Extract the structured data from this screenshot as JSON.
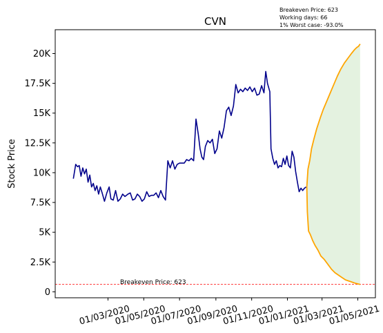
{
  "chart_data": {
    "type": "line",
    "title": "CVN",
    "ylabel": "Stock Price",
    "xlabel": "",
    "ylim": [
      -500,
      22000
    ],
    "xlim": [
      "2019-12-02",
      "2021-05-31"
    ],
    "grid": false,
    "y_ticks": [
      {
        "value": 0,
        "label": "0"
      },
      {
        "value": 2500,
        "label": "2.5K"
      },
      {
        "value": 5000,
        "label": "5K"
      },
      {
        "value": 7500,
        "label": "7.5K"
      },
      {
        "value": 10000,
        "label": "10K"
      },
      {
        "value": 12500,
        "label": "12.5K"
      },
      {
        "value": 15000,
        "label": "15K"
      },
      {
        "value": 17500,
        "label": "17.5K"
      },
      {
        "value": 20000,
        "label": "20K"
      }
    ],
    "x_ticks": [
      {
        "value": "2020-03-01",
        "label": "01/03/2020"
      },
      {
        "value": "2020-05-01",
        "label": "01/05/2020"
      },
      {
        "value": "2020-07-01",
        "label": "01/07/2020"
      },
      {
        "value": "2020-09-01",
        "label": "01/09/2020"
      },
      {
        "value": "2020-11-01",
        "label": "01/11/2020"
      },
      {
        "value": "2021-01-01",
        "label": "01/01/2021"
      },
      {
        "value": "2021-03-01",
        "label": "01/03/2021"
      },
      {
        "value": "2021-05-01",
        "label": "01/05/2021"
      }
    ],
    "series": [
      {
        "color": "#00008b",
        "points": [
          [
            "2020-01-02",
            9500
          ],
          [
            "2020-01-06",
            10700
          ],
          [
            "2020-01-09",
            10500
          ],
          [
            "2020-01-12",
            10600
          ],
          [
            "2020-01-15",
            9700
          ],
          [
            "2020-01-18",
            10400
          ],
          [
            "2020-01-21",
            9900
          ],
          [
            "2020-01-24",
            10300
          ],
          [
            "2020-01-27",
            9200
          ],
          [
            "2020-01-30",
            9800
          ],
          [
            "2020-02-02",
            8800
          ],
          [
            "2020-02-05",
            9100
          ],
          [
            "2020-02-08",
            8500
          ],
          [
            "2020-02-11",
            8900
          ],
          [
            "2020-02-14",
            8200
          ],
          [
            "2020-02-17",
            8800
          ],
          [
            "2020-02-20",
            8300
          ],
          [
            "2020-02-24",
            7600
          ],
          [
            "2020-02-28",
            8300
          ],
          [
            "2020-03-03",
            8800
          ],
          [
            "2020-03-06",
            7800
          ],
          [
            "2020-03-10",
            7700
          ],
          [
            "2020-03-14",
            8500
          ],
          [
            "2020-03-18",
            7600
          ],
          [
            "2020-03-22",
            7800
          ],
          [
            "2020-03-26",
            8200
          ],
          [
            "2020-03-30",
            8000
          ],
          [
            "2020-04-04",
            8200
          ],
          [
            "2020-04-08",
            8300
          ],
          [
            "2020-04-12",
            7700
          ],
          [
            "2020-04-16",
            7800
          ],
          [
            "2020-04-20",
            8200
          ],
          [
            "2020-04-24",
            8000
          ],
          [
            "2020-04-28",
            7600
          ],
          [
            "2020-05-02",
            7800
          ],
          [
            "2020-05-06",
            8400
          ],
          [
            "2020-05-10",
            8000
          ],
          [
            "2020-05-14",
            8100
          ],
          [
            "2020-05-18",
            8100
          ],
          [
            "2020-05-22",
            8300
          ],
          [
            "2020-05-26",
            7900
          ],
          [
            "2020-05-30",
            8500
          ],
          [
            "2020-06-03",
            8000
          ],
          [
            "2020-06-07",
            7700
          ],
          [
            "2020-06-11",
            11000
          ],
          [
            "2020-06-15",
            10400
          ],
          [
            "2020-06-19",
            11000
          ],
          [
            "2020-06-23",
            10300
          ],
          [
            "2020-06-27",
            10700
          ],
          [
            "2020-07-01",
            10800
          ],
          [
            "2020-07-05",
            10800
          ],
          [
            "2020-07-09",
            10800
          ],
          [
            "2020-07-13",
            11100
          ],
          [
            "2020-07-17",
            11000
          ],
          [
            "2020-07-21",
            11200
          ],
          [
            "2020-07-25",
            11000
          ],
          [
            "2020-07-29",
            14500
          ],
          [
            "2020-08-02",
            13200
          ],
          [
            "2020-08-05",
            12000
          ],
          [
            "2020-08-08",
            11300
          ],
          [
            "2020-08-11",
            11100
          ],
          [
            "2020-08-14",
            12200
          ],
          [
            "2020-08-18",
            12700
          ],
          [
            "2020-08-22",
            12500
          ],
          [
            "2020-08-26",
            12800
          ],
          [
            "2020-08-30",
            11600
          ],
          [
            "2020-09-03",
            12000
          ],
          [
            "2020-09-07",
            13500
          ],
          [
            "2020-09-11",
            12900
          ],
          [
            "2020-09-15",
            13800
          ],
          [
            "2020-09-19",
            15200
          ],
          [
            "2020-09-23",
            15500
          ],
          [
            "2020-09-27",
            14800
          ],
          [
            "2020-10-01",
            15600
          ],
          [
            "2020-10-05",
            17400
          ],
          [
            "2020-10-09",
            16700
          ],
          [
            "2020-10-13",
            17000
          ],
          [
            "2020-10-17",
            16800
          ],
          [
            "2020-10-21",
            17100
          ],
          [
            "2020-10-25",
            16900
          ],
          [
            "2020-10-29",
            17200
          ],
          [
            "2020-11-02",
            16800
          ],
          [
            "2020-11-06",
            17100
          ],
          [
            "2020-11-10",
            16500
          ],
          [
            "2020-11-14",
            16600
          ],
          [
            "2020-11-18",
            17300
          ],
          [
            "2020-11-22",
            16700
          ],
          [
            "2020-11-25",
            18500
          ],
          [
            "2020-11-28",
            17500
          ],
          [
            "2020-12-02",
            16800
          ],
          [
            "2020-12-04",
            12000
          ],
          [
            "2020-12-07",
            11200
          ],
          [
            "2020-12-10",
            10700
          ],
          [
            "2020-12-13",
            11000
          ],
          [
            "2020-12-16",
            10400
          ],
          [
            "2020-12-19",
            10600
          ],
          [
            "2020-12-22",
            10500
          ],
          [
            "2020-12-25",
            11200
          ],
          [
            "2020-12-28",
            10700
          ],
          [
            "2020-12-31",
            11400
          ],
          [
            "2021-01-03",
            10600
          ],
          [
            "2021-01-06",
            10400
          ],
          [
            "2021-01-09",
            11800
          ],
          [
            "2021-01-12",
            11300
          ],
          [
            "2021-01-15",
            10100
          ],
          [
            "2021-01-18",
            9200
          ],
          [
            "2021-01-21",
            8400
          ],
          [
            "2021-01-24",
            8700
          ],
          [
            "2021-01-27",
            8500
          ],
          [
            "2021-01-30",
            8700
          ],
          [
            "2021-02-02",
            8800
          ]
        ]
      },
      {
        "color": "#ffa500",
        "points": [
          [
            "2021-02-03",
            8800
          ],
          [
            "2021-02-05",
            10300
          ],
          [
            "2021-02-08",
            11000
          ],
          [
            "2021-02-11",
            12000
          ],
          [
            "2021-02-15",
            12800
          ],
          [
            "2021-02-20",
            13700
          ],
          [
            "2021-02-26",
            14600
          ],
          [
            "2021-03-03",
            15300
          ],
          [
            "2021-03-09",
            16000
          ],
          [
            "2021-03-15",
            16700
          ],
          [
            "2021-03-21",
            17400
          ],
          [
            "2021-03-27",
            18100
          ],
          [
            "2021-04-02",
            18700
          ],
          [
            "2021-04-08",
            19200
          ],
          [
            "2021-04-14",
            19600
          ],
          [
            "2021-04-20",
            20000
          ],
          [
            "2021-04-25",
            20300
          ],
          [
            "2021-04-29",
            20500
          ],
          [
            "2021-05-02",
            20600
          ],
          [
            "2021-05-05",
            20800
          ]
        ]
      },
      {
        "color": "#ffa500",
        "points": [
          [
            "2021-02-03",
            8800
          ],
          [
            "2021-02-04",
            6700
          ],
          [
            "2021-02-06",
            5100
          ],
          [
            "2021-02-09",
            4800
          ],
          [
            "2021-02-13",
            4300
          ],
          [
            "2021-02-17",
            3900
          ],
          [
            "2021-02-22",
            3500
          ],
          [
            "2021-02-27",
            3000
          ],
          [
            "2021-03-05",
            2700
          ],
          [
            "2021-03-11",
            2300
          ],
          [
            "2021-03-17",
            1900
          ],
          [
            "2021-03-23",
            1600
          ],
          [
            "2021-03-29",
            1400
          ],
          [
            "2021-04-04",
            1200
          ],
          [
            "2021-04-10",
            1000
          ],
          [
            "2021-04-16",
            900
          ],
          [
            "2021-04-22",
            800
          ],
          [
            "2021-04-28",
            700
          ],
          [
            "2021-05-05",
            620
          ]
        ]
      }
    ],
    "fill_between": {
      "color": "#d5ebd0",
      "opacity": 0.65
    },
    "breakeven_line": {
      "value": 623,
      "color": "#ff0000",
      "label": "Breakeven Price: 623"
    },
    "annotations": [
      "Breakeven Price: 623",
      "Working days: 66",
      "1% Worst case: -93.0%"
    ]
  }
}
